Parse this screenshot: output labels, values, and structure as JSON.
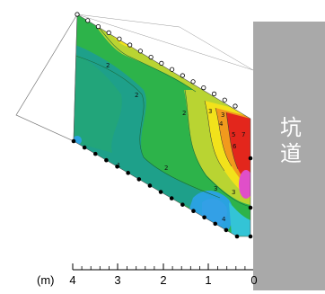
{
  "tunnel": {
    "label": "坑道",
    "color": "#a9a9a9"
  },
  "scale": {
    "unit_label": "(m)",
    "ticks": [
      "4",
      "3",
      "2",
      "1",
      "0"
    ]
  },
  "contour_labels": [
    "2",
    "2",
    "2",
    "2",
    "3",
    "3",
    "3",
    "3",
    "4",
    "4",
    "5",
    "6",
    "7",
    "1"
  ],
  "colors": {
    "green": "#2db34a",
    "dark_green": "#20a070",
    "teal": "#1ea08a",
    "yellow_green": "#b9d432",
    "yellow": "#f2e21b",
    "orange": "#f19a1d",
    "red": "#e3261c",
    "magenta": "#e04fc9",
    "blue": "#2aa2e0",
    "cyan": "#33c4d6"
  }
}
